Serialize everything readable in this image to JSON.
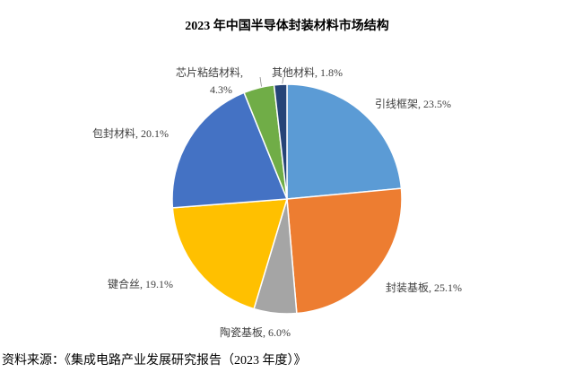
{
  "chart_data": {
    "type": "pie",
    "title": "2023 年中国半导体封装材料市场结构",
    "categories": [
      "引线框架,",
      "封装基板,",
      "陶瓷基板,",
      "键合丝,",
      "包封材料,",
      "芯片粘结材料,",
      "其他材料,"
    ],
    "values": [
      23.5,
      25.1,
      6.0,
      19.1,
      20.1,
      4.3,
      1.8
    ],
    "value_labels": [
      "23.5%",
      "25.1%",
      "6.0%",
      "19.1%",
      "20.1%",
      "4.3%",
      "1.8%"
    ],
    "colors": [
      "#5b9bd5",
      "#ed7d31",
      "#a5a5a5",
      "#ffc000",
      "#4472c4",
      "#70ad47",
      "#264478"
    ],
    "source": "资料来源：《集成电路产业发展研究报告（2023 年度）》"
  }
}
